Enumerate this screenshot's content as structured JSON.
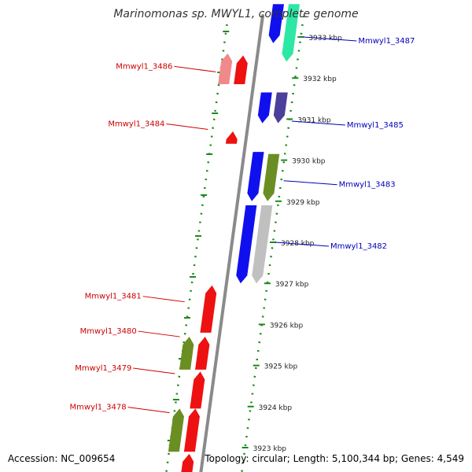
{
  "title": "Marinomonas sp. MWYL1, complete genome",
  "footer": {
    "accession": "Accession: NC_009654",
    "summary": "Topology: circular; Length: 5,100,344 bp; Genes: 4,549"
  },
  "colors": {
    "backbone": "#8a8a8a",
    "dots": "#1a8a1a",
    "minus_label": "#cc0000",
    "plus_label": "#0000bb",
    "tick_text": "#222222"
  },
  "chart_data": {
    "type": "genome-map",
    "view_range_kbp": [
      3922.5,
      3933.8
    ],
    "ticks": [
      {
        "kbp": 3933,
        "label": "3933 kbp"
      },
      {
        "kbp": 3932,
        "label": "3932 kbp"
      },
      {
        "kbp": 3931,
        "label": "3931 kbp"
      },
      {
        "kbp": 3930,
        "label": "3930 kbp"
      },
      {
        "kbp": 3929,
        "label": "3929 kbp"
      },
      {
        "kbp": 3928,
        "label": "3928 kbp"
      },
      {
        "kbp": 3927,
        "label": "3927 kbp"
      },
      {
        "kbp": 3926,
        "label": "3926 kbp"
      },
      {
        "kbp": 3925,
        "label": "3925 kbp"
      },
      {
        "kbp": 3924,
        "label": "3924 kbp"
      },
      {
        "kbp": 3923,
        "label": "3923 kbp"
      }
    ],
    "genes": [
      {
        "strand": "+",
        "start": 3932.85,
        "end": 3933.8,
        "color": "#1010ee",
        "lane": "inner"
      },
      {
        "strand": "+",
        "start": 3932.4,
        "end": 3933.8,
        "color": "#2de8a4",
        "lane": "outer"
      },
      {
        "strand": "-",
        "start": 3931.85,
        "end": 3932.6,
        "color": "#f08a8a",
        "lane": "outer"
      },
      {
        "strand": "-",
        "start": 3931.85,
        "end": 3932.55,
        "color": "#ee1111",
        "lane": "inner"
      },
      {
        "strand": "+",
        "start": 3930.9,
        "end": 3931.65,
        "color": "#1010ee",
        "lane": "inner"
      },
      {
        "strand": "+",
        "start": 3930.9,
        "end": 3931.65,
        "color": "#4a3f9a",
        "lane": "outer"
      },
      {
        "strand": "-",
        "start": 3930.4,
        "end": 3930.7,
        "color": "#ee1111",
        "lane": "inner"
      },
      {
        "strand": "+",
        "start": 3929.0,
        "end": 3930.2,
        "color": "#1010ee",
        "lane": "inner"
      },
      {
        "strand": "+",
        "start": 3929.0,
        "end": 3930.15,
        "color": "#6b8e23",
        "lane": "outer"
      },
      {
        "strand": "+",
        "start": 3927.0,
        "end": 3928.9,
        "color": "#1010ee",
        "lane": "inner"
      },
      {
        "strand": "+",
        "start": 3927.0,
        "end": 3928.9,
        "color": "#c0c0c0",
        "lane": "outer"
      },
      {
        "strand": "-",
        "start": 3925.8,
        "end": 3926.95,
        "color": "#ee1111",
        "lane": "inner"
      },
      {
        "strand": "-",
        "start": 3924.9,
        "end": 3925.7,
        "color": "#6b8e23",
        "lane": "outer"
      },
      {
        "strand": "-",
        "start": 3924.9,
        "end": 3925.7,
        "color": "#ee1111",
        "lane": "inner"
      },
      {
        "strand": "-",
        "start": 3923.95,
        "end": 3924.85,
        "color": "#ee1111",
        "lane": "inner"
      },
      {
        "strand": "-",
        "start": 3922.9,
        "end": 3923.95,
        "color": "#6b8e23",
        "lane": "outer"
      },
      {
        "strand": "-",
        "start": 3922.9,
        "end": 3923.95,
        "color": "#ee1111",
        "lane": "inner"
      },
      {
        "strand": "-",
        "start": 3922.0,
        "end": 3922.85,
        "color": "#ee1111",
        "lane": "inner"
      }
    ],
    "labels": [
      {
        "text": "Mmwyl1_3487",
        "strand": "+",
        "kbp": 3933.0
      },
      {
        "text": "Mmwyl1_3486",
        "strand": "-",
        "kbp": 3932.15
      },
      {
        "text": "Mmwyl1_3485",
        "strand": "+",
        "kbp": 3930.95
      },
      {
        "text": "Mmwyl1_3484",
        "strand": "-",
        "kbp": 3930.75
      },
      {
        "text": "Mmwyl1_3483",
        "strand": "+",
        "kbp": 3929.5
      },
      {
        "text": "Mmwyl1_3482",
        "strand": "+",
        "kbp": 3928.0
      },
      {
        "text": "Mmwyl1_3481",
        "strand": "-",
        "kbp": 3926.55
      },
      {
        "text": "Mmwyl1_3480",
        "strand": "-",
        "kbp": 3925.7
      },
      {
        "text": "Mmwyl1_3479",
        "strand": "-",
        "kbp": 3924.8
      },
      {
        "text": "Mmwyl1_3478",
        "strand": "-",
        "kbp": 3923.85
      }
    ]
  }
}
